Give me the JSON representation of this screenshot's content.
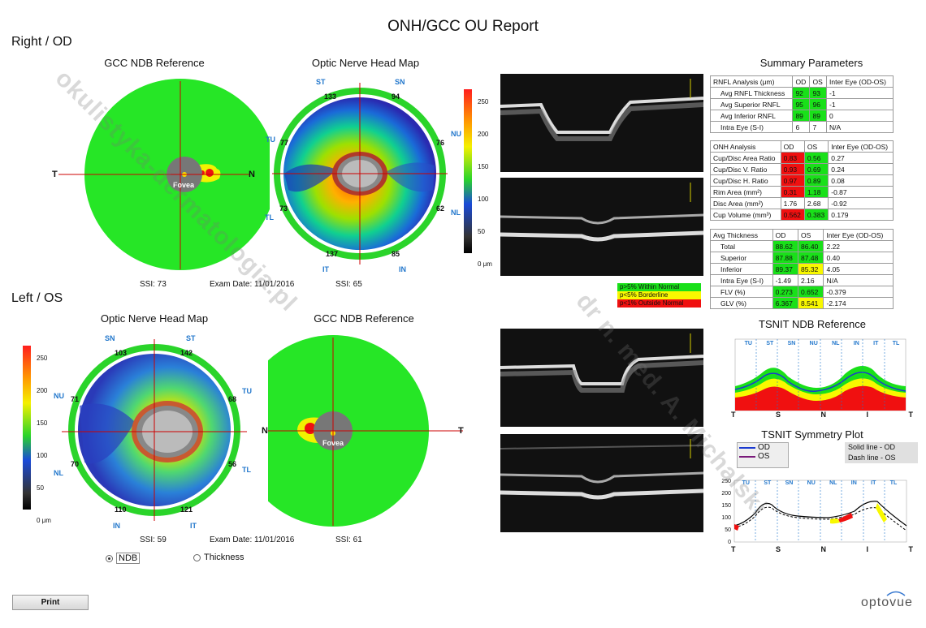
{
  "report": {
    "title": "ONH/GCC OU Report"
  },
  "right": {
    "section": "Right / OD",
    "gcc_title": "GCC NDB Reference",
    "onh_title": "Optic Nerve Head Map",
    "ssi_left": "SSI: 73",
    "exam": "Exam Date: 11/01/2016",
    "ssi_right": "SSI: 65",
    "gcc_T": "T",
    "gcc_N": "N",
    "fovea": "Fovea",
    "onh_labels": {
      "st": "ST",
      "sn": "SN",
      "tu": "TU",
      "nu": "NU",
      "tl": "TL",
      "nl": "NL",
      "it": "IT",
      "in": "IN"
    },
    "onh_values": {
      "st": "133",
      "sn": "94",
      "tu": "77",
      "nu": "76",
      "tl": "73",
      "nl": "62",
      "it": "137",
      "in": "85"
    }
  },
  "left": {
    "section": "Left / OS",
    "onh_title": "Optic Nerve Head Map",
    "gcc_title": "GCC NDB Reference",
    "ssi_left": "SSI: 59",
    "exam": "Exam Date: 11/01/2016",
    "ssi_right": "SSI: 61",
    "gcc_N": "N",
    "gcc_T": "T",
    "fovea": "Fovea",
    "onh_labels": {
      "sn": "SN",
      "st": "ST",
      "nu": "NU",
      "tu": "TU",
      "nl": "NL",
      "tl": "TL",
      "in": "IN",
      "it": "IT"
    },
    "onh_values": {
      "sn": "103",
      "st": "142",
      "nu": "71",
      "tu": "68",
      "nl": "70",
      "tl": "56",
      "in": "110",
      "it": "121"
    }
  },
  "colorbar": {
    "ticks": [
      "250",
      "200",
      "150",
      "100",
      "50",
      "0 μm"
    ]
  },
  "summary": {
    "title": "Summary Parameters",
    "rnfl": {
      "header": [
        "RNFL Analysis (μm)",
        "OD",
        "OS",
        "Inter Eye (OD-OS)"
      ],
      "rows": [
        [
          "Avg RNFL Thickness",
          "92",
          "93",
          "-1"
        ],
        [
          "Avg Superior RNFL",
          "95",
          "96",
          "-1"
        ],
        [
          "Avg Inferior RNFL",
          "89",
          "89",
          "0"
        ],
        [
          "Intra Eye (S-I)",
          "6",
          "7",
          "N/A"
        ]
      ]
    },
    "onh": {
      "header": [
        "ONH Analysis",
        "OD",
        "OS",
        "Inter Eye (OD-OS)"
      ],
      "rows": [
        [
          "Cup/Disc Area Ratio",
          "0.83",
          "0.56",
          "0.27"
        ],
        [
          "Cup/Disc V. Ratio",
          "0.93",
          "0.69",
          "0.24"
        ],
        [
          "Cup/Disc H. Ratio",
          "0.97",
          "0.89",
          "0.08"
        ],
        [
          "Rim Area (mm²)",
          "0.31",
          "1.18",
          "-0.87"
        ],
        [
          "Disc Area (mm²)",
          "1.76",
          "2.68",
          "-0.92"
        ],
        [
          "Cup Volume (mm³)",
          "0.562",
          "0.383",
          "0.179"
        ]
      ]
    },
    "avg": {
      "header": [
        "Avg Thickness",
        "OD",
        "OS",
        "Inter Eye (OD-OS)"
      ],
      "rows": [
        [
          "Total",
          "88.62",
          "86.40",
          "2.22"
        ],
        [
          "Superior",
          "87.88",
          "87.48",
          "0.40"
        ],
        [
          "Inferior",
          "89.37",
          "85.32",
          "4.05"
        ],
        [
          "Intra Eye (S-I)",
          "-1.49",
          "2.16",
          "N/A"
        ],
        [
          "FLV (%)",
          "0.273",
          "0.652",
          "-0.379"
        ],
        [
          "GLV (%)",
          "6.367",
          "8.541",
          "-2.174"
        ]
      ]
    }
  },
  "legend": {
    "normal": "p>5% Within Normal",
    "borderline": "p<5% Borderline",
    "outside": "p<1% Outside Normal"
  },
  "tsnit": {
    "title": "TSNIT NDB Reference",
    "sectors": [
      "TU",
      "ST",
      "SN",
      "NU",
      "NL",
      "IN",
      "IT",
      "TL"
    ],
    "xticks": [
      "T",
      "S",
      "N",
      "I",
      "T"
    ]
  },
  "symmetry": {
    "title": "TSNIT Symmetry Plot",
    "od": "OD",
    "os": "OS",
    "solid": "Solid line - OD",
    "dash": "Dash line - OS",
    "yticks": [
      "250",
      "200",
      "150",
      "100",
      "50",
      "0"
    ],
    "sectors": [
      "TU",
      "ST",
      "SN",
      "NU",
      "NL",
      "IN",
      "IT",
      "TL"
    ],
    "xticks": [
      "T",
      "S",
      "N",
      "I",
      "T"
    ]
  },
  "controls": {
    "ndb": "NDB",
    "thickness": "Thickness",
    "print": "Print"
  },
  "brand": {
    "logo": "optovue"
  },
  "watermarks": {
    "a": "okulistyka-dermatologia.pl",
    "b": "dr n. med. A. Michalski"
  }
}
